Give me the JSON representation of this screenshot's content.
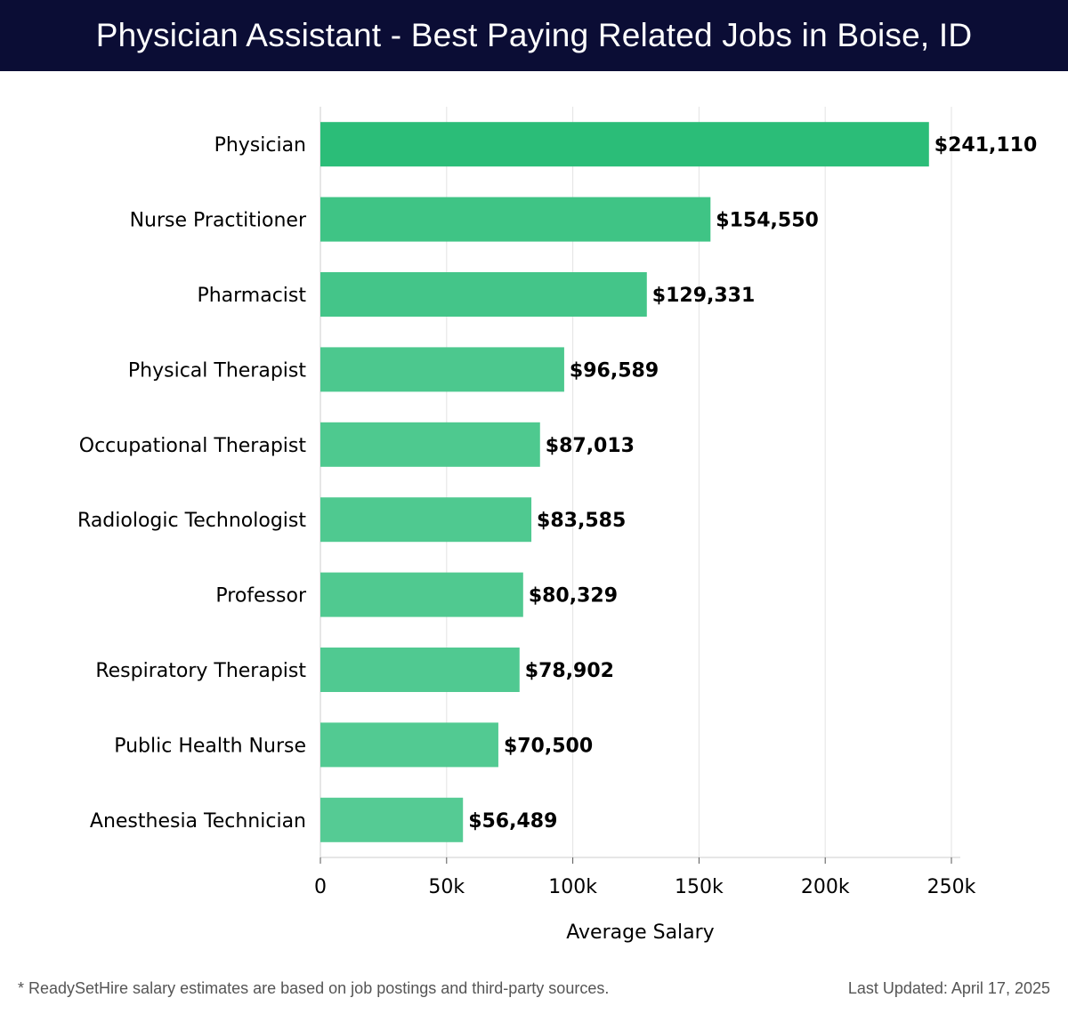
{
  "header": {
    "title": "Physician Assistant - Best Paying Related Jobs in Boise, ID"
  },
  "chart_data": {
    "type": "bar",
    "orientation": "horizontal",
    "title": "Physician Assistant - Best Paying Related Jobs in Boise, ID",
    "xlabel": "Average Salary",
    "ylabel": "",
    "xlim": [
      0,
      250000
    ],
    "x_ticks": [
      0,
      50000,
      100000,
      150000,
      200000,
      250000
    ],
    "x_tick_labels": [
      "0",
      "50k",
      "100k",
      "150k",
      "200k",
      "250k"
    ],
    "grid": "vertical",
    "categories": [
      "Physician",
      "Nurse Practitioner",
      "Pharmacist",
      "Physical Therapist",
      "Occupational Therapist",
      "Radiologic Technologist",
      "Professor",
      "Respiratory Therapist",
      "Public Health Nurse",
      "Anesthesia Technician"
    ],
    "values": [
      241110,
      154550,
      129331,
      96589,
      87013,
      83585,
      80329,
      78902,
      70500,
      56489
    ],
    "data_labels": [
      "$241,110",
      "$154,550",
      "$129,331",
      "$96,589",
      "$87,013",
      "$83,585",
      "$80,329",
      "$78,902",
      "$70,500",
      "$56,489"
    ],
    "colors": {
      "bar_max": "#2bbd78",
      "bar_min": "#55cb94",
      "grid": "#e3e3e3",
      "axis": "#cccccc",
      "text": "#000000"
    }
  },
  "footer": {
    "note": "* ReadySetHire salary estimates are based on job postings and third-party sources.",
    "updated": "Last Updated: April 17, 2025"
  }
}
